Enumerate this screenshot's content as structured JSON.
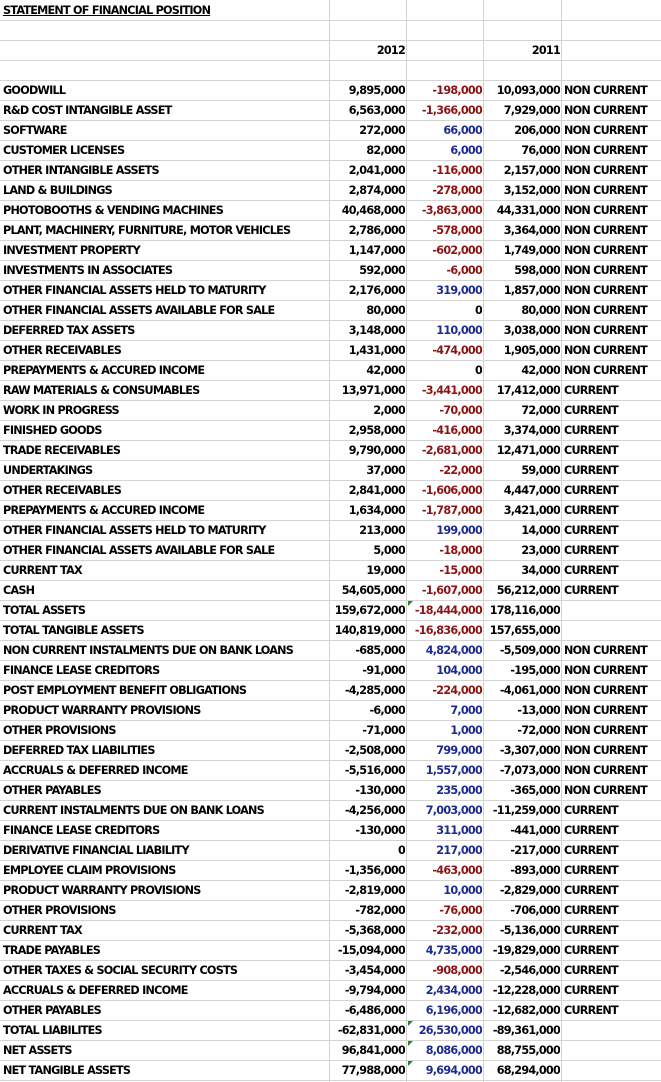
{
  "title": "STATEMENT OF FINANCIAL POSITION",
  "headers": {
    "y2012": "2012",
    "y2011": "2011"
  },
  "rows": [
    {
      "label": "GOODWILL",
      "v2012": "9,895,000",
      "diff": "-198,000",
      "v2011": "10,093,000",
      "cls": "NON CURRENT"
    },
    {
      "label": "R&D COST INTANGIBLE ASSET",
      "v2012": "6,563,000",
      "diff": "-1,366,000",
      "v2011": "7,929,000",
      "cls": "NON CURRENT"
    },
    {
      "label": "SOFTWARE",
      "v2012": "272,000",
      "diff": "66,000",
      "v2011": "206,000",
      "cls": "NON CURRENT"
    },
    {
      "label": "CUSTOMER LICENSES",
      "v2012": "82,000",
      "diff": "6,000",
      "v2011": "76,000",
      "cls": "NON CURRENT"
    },
    {
      "label": "OTHER INTANGIBLE ASSETS",
      "v2012": "2,041,000",
      "diff": "-116,000",
      "v2011": "2,157,000",
      "cls": "NON CURRENT"
    },
    {
      "label": "LAND & BUILDINGS",
      "v2012": "2,874,000",
      "diff": "-278,000",
      "v2011": "3,152,000",
      "cls": "NON CURRENT"
    },
    {
      "label": "PHOTOBOOTHS & VENDING MACHINES",
      "v2012": "40,468,000",
      "diff": "-3,863,000",
      "v2011": "44,331,000",
      "cls": "NON CURRENT"
    },
    {
      "label": "PLANT, MACHINERY, FURNITURE, MOTOR VEHICLES",
      "v2012": "2,786,000",
      "diff": "-578,000",
      "v2011": "3,364,000",
      "cls": "NON CURRENT"
    },
    {
      "label": "INVESTMENT PROPERTY",
      "v2012": "1,147,000",
      "diff": "-602,000",
      "v2011": "1,749,000",
      "cls": "NON CURRENT"
    },
    {
      "label": "INVESTMENTS IN ASSOCIATES",
      "v2012": "592,000",
      "diff": "-6,000",
      "v2011": "598,000",
      "cls": "NON CURRENT"
    },
    {
      "label": "OTHER FINANCIAL ASSETS HELD TO MATURITY",
      "v2012": "2,176,000",
      "diff": "319,000",
      "v2011": "1,857,000",
      "cls": "NON CURRENT"
    },
    {
      "label": "OTHER FINANCIAL ASSETS AVAILABLE FOR SALE",
      "v2012": "80,000",
      "diff": "0",
      "v2011": "80,000",
      "cls": "NON CURRENT"
    },
    {
      "label": "DEFERRED TAX ASSETS",
      "v2012": "3,148,000",
      "diff": "110,000",
      "v2011": "3,038,000",
      "cls": "NON CURRENT"
    },
    {
      "label": "OTHER RECEIVABLES",
      "v2012": "1,431,000",
      "diff": "-474,000",
      "v2011": "1,905,000",
      "cls": "NON CURRENT"
    },
    {
      "label": "PREPAYMENTS & ACCURED INCOME",
      "v2012": "42,000",
      "diff": "0",
      "v2011": "42,000",
      "cls": "NON CURRENT"
    },
    {
      "label": "RAW MATERIALS & CONSUMABLES",
      "v2012": "13,971,000",
      "diff": "-3,441,000",
      "v2011": "17,412,000",
      "cls": "CURRENT"
    },
    {
      "label": "WORK IN PROGRESS",
      "v2012": "2,000",
      "diff": "-70,000",
      "v2011": "72,000",
      "cls": "CURRENT"
    },
    {
      "label": "FINISHED GOODS",
      "v2012": "2,958,000",
      "diff": "-416,000",
      "v2011": "3,374,000",
      "cls": "CURRENT"
    },
    {
      "label": "TRADE RECEIVABLES",
      "v2012": "9,790,000",
      "diff": "-2,681,000",
      "v2011": "12,471,000",
      "cls": "CURRENT"
    },
    {
      "label": "UNDERTAKINGS",
      "v2012": "37,000",
      "diff": "-22,000",
      "v2011": "59,000",
      "cls": "CURRENT"
    },
    {
      "label": "OTHER RECEIVABLES",
      "v2012": "2,841,000",
      "diff": "-1,606,000",
      "v2011": "4,447,000",
      "cls": "CURRENT"
    },
    {
      "label": "PREPAYMENTS & ACCURED INCOME",
      "v2012": "1,634,000",
      "diff": "-1,787,000",
      "v2011": "3,421,000",
      "cls": "CURRENT"
    },
    {
      "label": "OTHER FINANCIAL ASSETS HELD TO MATURITY",
      "v2012": "213,000",
      "diff": "199,000",
      "v2011": "14,000",
      "cls": "CURRENT"
    },
    {
      "label": "OTHER FINANCIAL ASSETS AVAILABLE FOR SALE",
      "v2012": "5,000",
      "diff": "-18,000",
      "v2011": "23,000",
      "cls": "CURRENT"
    },
    {
      "label": "CURRENT TAX",
      "v2012": "19,000",
      "diff": "-15,000",
      "v2011": "34,000",
      "cls": "CURRENT"
    },
    {
      "label": "CASH",
      "v2012": "54,605,000",
      "diff": "-1,607,000",
      "v2011": "56,212,000",
      "cls": "CURRENT"
    },
    {
      "label": "TOTAL ASSETS",
      "v2012": "159,672,000",
      "diff": "-18,444,000",
      "v2011": "178,116,000",
      "cls": "",
      "flag": true
    },
    {
      "label": "TOTAL TANGIBLE ASSETS",
      "v2012": "140,819,000",
      "diff": "-16,836,000",
      "v2011": "157,655,000",
      "cls": ""
    },
    {
      "label": "NON CURRENT INSTALMENTS DUE ON BANK LOANS",
      "v2012": "-685,000",
      "diff": "4,824,000",
      "v2011": "-5,509,000",
      "cls": "NON CURRENT"
    },
    {
      "label": "FINANCE LEASE CREDITORS",
      "v2012": "-91,000",
      "diff": "104,000",
      "v2011": "-195,000",
      "cls": "NON CURRENT"
    },
    {
      "label": "POST EMPLOYMENT BENEFIT OBLIGATIONS",
      "v2012": "-4,285,000",
      "diff": "-224,000",
      "v2011": "-4,061,000",
      "cls": "NON CURRENT"
    },
    {
      "label": "PRODUCT WARRANTY PROVISIONS",
      "v2012": "-6,000",
      "diff": "7,000",
      "v2011": "-13,000",
      "cls": "NON CURRENT"
    },
    {
      "label": "OTHER PROVISIONS",
      "v2012": "-71,000",
      "diff": "1,000",
      "v2011": "-72,000",
      "cls": "NON CURRENT"
    },
    {
      "label": "DEFERRED TAX LIABILITIES",
      "v2012": "-2,508,000",
      "diff": "799,000",
      "v2011": "-3,307,000",
      "cls": "NON CURRENT"
    },
    {
      "label": "ACCRUALS & DEFERRED INCOME",
      "v2012": "-5,516,000",
      "diff": "1,557,000",
      "v2011": "-7,073,000",
      "cls": "NON CURRENT"
    },
    {
      "label": "OTHER PAYABLES",
      "v2012": "-130,000",
      "diff": "235,000",
      "v2011": "-365,000",
      "cls": "NON CURRENT"
    },
    {
      "label": "CURRENT INSTALMENTS DUE ON BANK LOANS",
      "v2012": "-4,256,000",
      "diff": "7,003,000",
      "v2011": "-11,259,000",
      "cls": "CURRENT"
    },
    {
      "label": "FINANCE LEASE CREDITORS",
      "v2012": "-130,000",
      "diff": "311,000",
      "v2011": "-441,000",
      "cls": "CURRENT"
    },
    {
      "label": "DERIVATIVE FINANCIAL LIABILITY",
      "v2012": "0",
      "diff": "217,000",
      "v2011": "-217,000",
      "cls": "CURRENT"
    },
    {
      "label": "EMPLOYEE CLAIM PROVISIONS",
      "v2012": "-1,356,000",
      "diff": "-463,000",
      "v2011": "-893,000",
      "cls": "CURRENT"
    },
    {
      "label": "PRODUCT WARRANTY PROVISIONS",
      "v2012": "-2,819,000",
      "diff": "10,000",
      "v2011": "-2,829,000",
      "cls": "CURRENT"
    },
    {
      "label": "OTHER PROVISIONS",
      "v2012": "-782,000",
      "diff": "-76,000",
      "v2011": "-706,000",
      "cls": "CURRENT"
    },
    {
      "label": "CURRENT TAX",
      "v2012": "-5,368,000",
      "diff": "-232,000",
      "v2011": "-5,136,000",
      "cls": "CURRENT"
    },
    {
      "label": "TRADE PAYABLES",
      "v2012": "-15,094,000",
      "diff": "4,735,000",
      "v2011": "-19,829,000",
      "cls": "CURRENT"
    },
    {
      "label": "OTHER TAXES & SOCIAL SECURITY COSTS",
      "v2012": "-3,454,000",
      "diff": "-908,000",
      "v2011": "-2,546,000",
      "cls": "CURRENT"
    },
    {
      "label": "ACCRUALS & DEFERRED INCOME",
      "v2012": "-9,794,000",
      "diff": "2,434,000",
      "v2011": "-12,228,000",
      "cls": "CURRENT"
    },
    {
      "label": "OTHER PAYABLES",
      "v2012": "-6,486,000",
      "diff": "6,196,000",
      "v2011": "-12,682,000",
      "cls": "CURRENT"
    },
    {
      "label": "TOTAL LIABILITES",
      "v2012": "-62,831,000",
      "diff": "26,530,000",
      "v2011": "-89,361,000",
      "cls": "",
      "flag": true
    },
    {
      "label": "NET ASSETS",
      "v2012": "96,841,000",
      "diff": "8,086,000",
      "v2011": "88,755,000",
      "cls": "",
      "flag": true
    },
    {
      "label": "NET TANGIBLE ASSETS",
      "v2012": "77,988,000",
      "diff": "9,694,000",
      "v2011": "68,294,000",
      "cls": "",
      "flag": true
    }
  ]
}
